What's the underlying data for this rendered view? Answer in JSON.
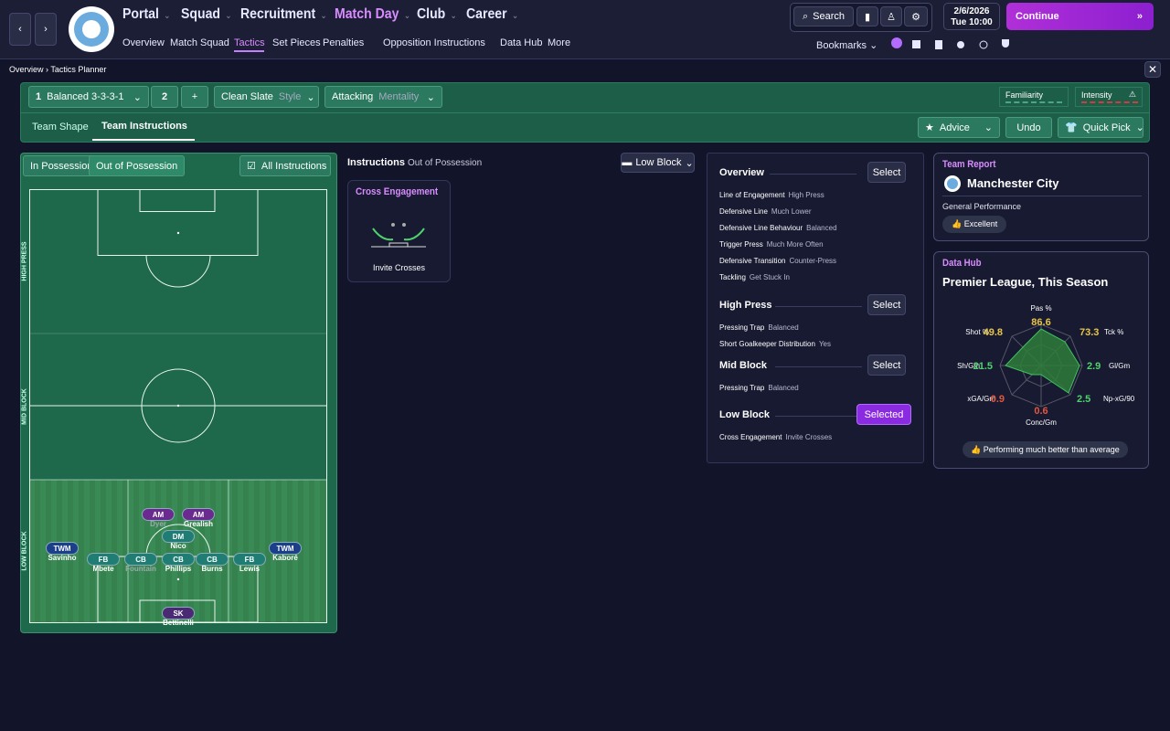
{
  "nav": {
    "menu": [
      "Portal",
      "Squad",
      "Recruitment",
      "Match Day",
      "Club",
      "Career"
    ],
    "submenu": [
      "Overview",
      "Match Squad",
      "Tactics",
      "Set Pieces",
      "Penalties",
      "Opposition Instructions",
      "Data Hub",
      "More"
    ],
    "search": "Search",
    "date": "2/6/2026",
    "day": "Tue",
    "time": "10:00",
    "continue": "Continue",
    "bookmarks": "Bookmarks"
  },
  "breadcrumb": [
    "Overview",
    "Tactics Planner"
  ],
  "toolbar": {
    "tactic_number": "1",
    "tactic": "Balanced 3-3-3-1",
    "slot": "2",
    "add": "+",
    "style": "Clean Slate",
    "style_label": "Style",
    "mentality": "Attacking",
    "mentality_label": "Mentality",
    "familiarity": "Familiarity",
    "intensity": "Intensity"
  },
  "tabs": [
    "Team Shape",
    "Team Instructions"
  ],
  "actions": [
    "Advice",
    "Undo",
    "Quick Pick"
  ],
  "pitch": {
    "toggles": [
      "In Possession",
      "Out of Possession"
    ],
    "all_instructions": "All Instructions",
    "zones": [
      "HIGH PRESS",
      "MID BLOCK",
      "LOW BLOCK"
    ],
    "players": [
      {
        "role": "TWM",
        "name": "Savinho"
      },
      {
        "role": "FB",
        "name": "Mbete"
      },
      {
        "role": "CB",
        "name": "Fountain"
      },
      {
        "role": "CB",
        "name": "Phillips"
      },
      {
        "role": "CB",
        "name": "Burns"
      },
      {
        "role": "FB",
        "name": "Lewis"
      },
      {
        "role": "TWM",
        "name": "Kaboré"
      },
      {
        "role": "AM",
        "name": "Dyer"
      },
      {
        "role": "AM",
        "name": "Grealish"
      },
      {
        "role": "DM",
        "name": "Nico"
      },
      {
        "role": "SK",
        "name": "Bettinelli"
      }
    ]
  },
  "instructions": {
    "title": "Instructions",
    "phase": "Out of Possession",
    "filter": "Low Block",
    "card": {
      "title": "Cross Engagement",
      "value": "Invite Crosses"
    }
  },
  "overview": [
    {
      "title": "Overview",
      "button": "Select",
      "items": [
        [
          "Line of Engagement",
          "High Press"
        ],
        [
          "Defensive Line",
          "Much Lower"
        ],
        [
          "Defensive Line Behaviour",
          "Balanced"
        ],
        [
          "Trigger Press",
          "Much More Often"
        ],
        [
          "Defensive Transition",
          "Counter-Press"
        ],
        [
          "Tackling",
          "Get Stuck In"
        ]
      ]
    },
    {
      "title": "High Press",
      "button": "Select",
      "items": [
        [
          "Pressing Trap",
          "Balanced"
        ],
        [
          "Short Goalkeeper Distribution",
          "Yes"
        ]
      ]
    },
    {
      "title": "Mid Block",
      "button": "Select",
      "items": [
        [
          "Pressing Trap",
          "Balanced"
        ]
      ]
    },
    {
      "title": "Low Block",
      "button": "Selected",
      "items": [
        [
          "Cross Engagement",
          "Invite Crosses"
        ]
      ]
    }
  ],
  "team_report": {
    "title": "Team Report",
    "team": "Manchester City",
    "label": "General Performance",
    "rating": "Excellent"
  },
  "data_hub": {
    "title": "Data Hub",
    "subtitle": "Premier League, This Season",
    "metrics": [
      {
        "name": "Pas %",
        "value": 86.6
      },
      {
        "name": "Tck %",
        "value": 73.3
      },
      {
        "name": "Gl/Gm",
        "value": 2.9
      },
      {
        "name": "Np-xG/90",
        "value": 2.5
      },
      {
        "name": "Conc/Gm",
        "value": 0.6
      },
      {
        "name": "xGA/Gm",
        "value": 0.9
      },
      {
        "name": "Sh/Gm",
        "value": 21.5
      },
      {
        "name": "Shot %",
        "value": 49.8
      }
    ],
    "summary": "Performing much better than average"
  }
}
